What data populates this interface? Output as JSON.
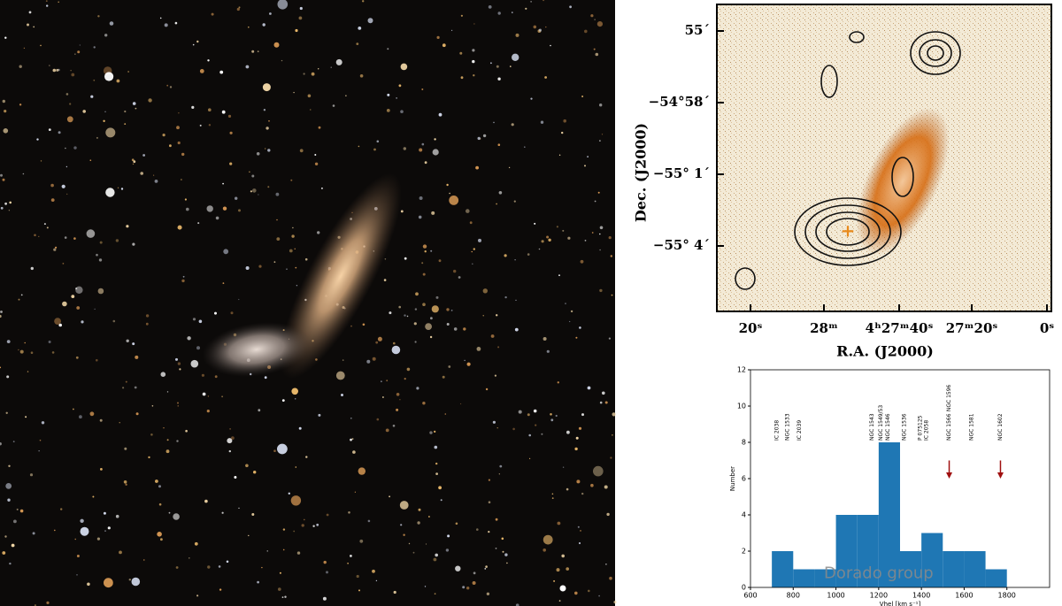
{
  "contour_map": {
    "ylabel": "Dec. (J2000)",
    "xlabel": "R.A. (J2000)",
    "yticklabels": [
      "55´",
      "−54°58´",
      "−55° 1´",
      "−55° 4´"
    ],
    "xticklabels": [
      "20ˢ",
      "28ᵐ",
      "4ʰ27ᵐ40ˢ",
      "27ᵐ20ˢ",
      "0ˢ"
    ]
  },
  "chart_data": {
    "type": "histogram",
    "bins": [
      700,
      800,
      900,
      1000,
      1100,
      1200,
      1300,
      1400,
      1500,
      1600,
      1700,
      1800
    ],
    "values": [
      2,
      1,
      1,
      4,
      4,
      8,
      2,
      3,
      2,
      2,
      1
    ],
    "color": "#1f77b4",
    "xlim": [
      600,
      2000
    ],
    "ylim": [
      0,
      12
    ],
    "xticks": [
      600,
      800,
      1000,
      1200,
      1400,
      1600,
      1800
    ],
    "yticks": [
      0,
      2,
      4,
      6,
      8,
      10,
      12
    ],
    "xlabel": "Vhel [km s⁻¹]",
    "ylabel": "Number",
    "watermark": "Dorado group",
    "annotations": [
      {
        "text": "IC 2038",
        "x": 725,
        "y": 8.1
      },
      {
        "text": "NGC 1533",
        "x": 775,
        "y": 8.1
      },
      {
        "text": "IC 2039",
        "x": 830,
        "y": 8.1
      },
      {
        "text": "NGC 1543",
        "x": 1170,
        "y": 8.1
      },
      {
        "text": "NGC 1549/53",
        "x": 1210,
        "y": 8.1
      },
      {
        "text": "NGC 1546",
        "x": 1245,
        "y": 8.1
      },
      {
        "text": "NGC 1536",
        "x": 1320,
        "y": 8.1
      },
      {
        "text": "P 075125",
        "x": 1395,
        "y": 8.1
      },
      {
        "text": "IC 2058",
        "x": 1425,
        "y": 8.1
      },
      {
        "text": "NGC 1566",
        "x": 1530,
        "y": 8.1
      },
      {
        "text": "NGC 1596",
        "x": 1530,
        "y": 9.7
      },
      {
        "text": "NGC 1581",
        "x": 1635,
        "y": 8.1
      },
      {
        "text": "NGC 1602",
        "x": 1770,
        "y": 8.1
      }
    ],
    "arrows": [
      {
        "x": 1530,
        "y_from": 7,
        "y_to": 6,
        "color": "#a01010"
      },
      {
        "x": 1770,
        "y_from": 7,
        "y_to": 6,
        "color": "#a01010"
      }
    ]
  }
}
